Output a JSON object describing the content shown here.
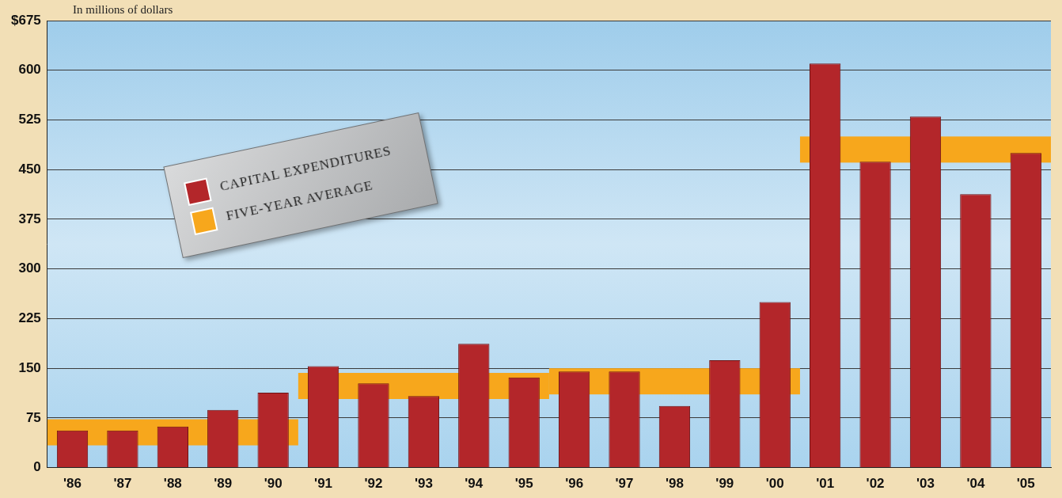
{
  "chart_data": {
    "type": "bar",
    "y_label": "In millions of dollars",
    "categories": [
      "'86",
      "'87",
      "'88",
      "'89",
      "'90",
      "'91",
      "'92",
      "'93",
      "'94",
      "'95",
      "'96",
      "'97",
      "'98",
      "'99",
      "'00",
      "'01",
      "'02",
      "'03",
      "'04",
      "'05"
    ],
    "series": [
      {
        "name": "CAPITAL EXPENDITURES",
        "type": "bar",
        "color": "#b3262a",
        "values": [
          56,
          56,
          62,
          87,
          113,
          153,
          127,
          108,
          187,
          136,
          145,
          145,
          93,
          162,
          250,
          610,
          462,
          530,
          413,
          475
        ]
      },
      {
        "name": "FIVE-YEAR AVERAGE",
        "type": "step",
        "color": "#f7a71c",
        "values": [
          73,
          73,
          73,
          73,
          73,
          143,
          143,
          143,
          143,
          143,
          150,
          150,
          150,
          150,
          150,
          500,
          500,
          500,
          500,
          500
        ]
      }
    ],
    "ylim": [
      0,
      675
    ],
    "yticks": [
      0,
      75,
      150,
      225,
      300,
      375,
      450,
      525,
      600,
      {
        "value": 675,
        "label": "$675"
      }
    ],
    "grid": true,
    "legend": "upper left"
  }
}
